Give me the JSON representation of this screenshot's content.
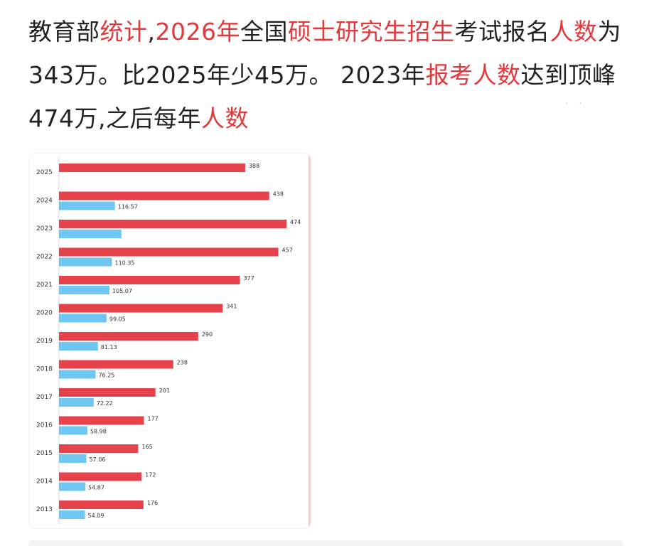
{
  "post": {
    "segments": [
      {
        "text": "教育部",
        "hl": false
      },
      {
        "text": "统计",
        "hl": true
      },
      {
        "text": ",",
        "hl": false
      },
      {
        "text": "2026年",
        "hl": true
      },
      {
        "text": "全国",
        "hl": false
      },
      {
        "text": "硕士研究生招生",
        "hl": true
      },
      {
        "text": "考试报名",
        "hl": false
      },
      {
        "text": "人数",
        "hl": true
      },
      {
        "text": "为343万。比2025年少45万。 2023年",
        "hl": false
      },
      {
        "text": "报考人数",
        "hl": true
      },
      {
        "text": "达到顶峰474万,之后每年",
        "hl": false
      },
      {
        "text": "人数",
        "hl": true
      }
    ]
  },
  "colors": {
    "highlight": "#e23a3c",
    "bar_primary": "#e6424c",
    "bar_secondary": "#6ec6f2"
  },
  "chart_data": {
    "type": "bar",
    "orientation": "horizontal",
    "categories": [
      "2025",
      "2024",
      "2023",
      "2022",
      "2021",
      "2020",
      "2019",
      "2018",
      "2017",
      "2016",
      "2015",
      "2014",
      "2013"
    ],
    "series": [
      {
        "values": [
          388,
          438,
          474,
          457,
          377,
          341,
          290,
          238,
          201,
          177,
          165,
          172,
          176
        ],
        "labels": [
          "388",
          "438",
          "474",
          "457",
          "377",
          "341",
          "290",
          "238",
          "201",
          "177",
          "165",
          "172",
          "176"
        ]
      },
      {
        "values": [
          null,
          116.57,
          130,
          110.35,
          105.07,
          99.05,
          81.13,
          76.25,
          72.22,
          58.98,
          57.06,
          54.87,
          54.09
        ],
        "labels": [
          "",
          "116.57",
          "",
          "110.35",
          "105.07",
          "99.05",
          "81.13",
          "76.25",
          "72.22",
          "58.98",
          "57.06",
          "54.87",
          "54.09"
        ]
      }
    ],
    "xlim": [
      0,
      474
    ],
    "title": "",
    "xlabel": "",
    "ylabel": "",
    "grid": false,
    "legend": "none"
  }
}
